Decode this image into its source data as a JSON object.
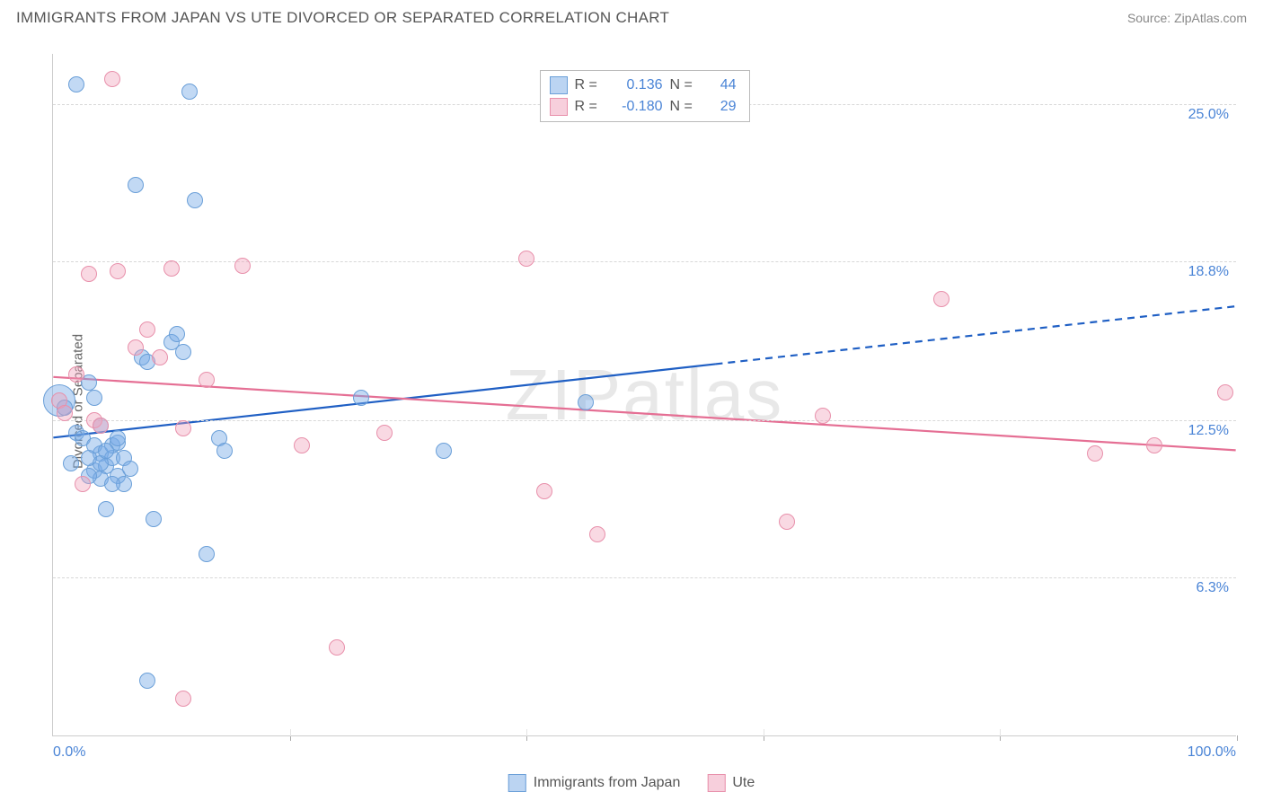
{
  "title": "IMMIGRANTS FROM JAPAN VS UTE DIVORCED OR SEPARATED CORRELATION CHART",
  "source": "Source: ZipAtlas.com",
  "watermark": "ZIPatlas",
  "chart": {
    "type": "scatter",
    "ylabel": "Divorced or Separated",
    "xlim": [
      0,
      100
    ],
    "ylim": [
      0,
      27
    ],
    "background_color": "#ffffff",
    "grid_color": "#d8d8d8",
    "xticks": [
      {
        "pos": 0,
        "label": "0.0%"
      },
      {
        "pos": 100,
        "label": "100.0%"
      }
    ],
    "yticks": [
      {
        "pos": 6.3,
        "label": "6.3%"
      },
      {
        "pos": 12.5,
        "label": "12.5%"
      },
      {
        "pos": 18.8,
        "label": "18.8%"
      },
      {
        "pos": 25.0,
        "label": "25.0%"
      }
    ],
    "vgrid": [
      20,
      40,
      60,
      80,
      100
    ],
    "series": [
      {
        "name": "Immigrants from Japan",
        "color_fill": "rgba(120,170,230,0.45)",
        "color_stroke": "#6a9fd8",
        "marker_radius": 9,
        "r_value": "0.136",
        "n_value": "44",
        "trend": {
          "y0": 11.8,
          "y100": 17.0,
          "solid_until": 56,
          "color": "#1f5fc4",
          "width": 2.2
        },
        "points": [
          [
            0.5,
            13.3,
            18
          ],
          [
            1.0,
            13.0
          ],
          [
            2.0,
            25.8
          ],
          [
            3.5,
            10.5
          ],
          [
            4.0,
            11.2
          ],
          [
            4.5,
            10.7
          ],
          [
            5.0,
            11.0
          ],
          [
            5.5,
            10.3
          ],
          [
            6.0,
            11.0
          ],
          [
            6.0,
            10.0
          ],
          [
            3.0,
            14.0
          ],
          [
            3.5,
            13.4
          ],
          [
            4.0,
            12.3
          ],
          [
            4.5,
            9.0
          ],
          [
            5.0,
            11.5
          ],
          [
            7.0,
            21.8
          ],
          [
            8.5,
            8.6
          ],
          [
            10.0,
            15.6
          ],
          [
            10.5,
            15.9
          ],
          [
            11.0,
            15.2
          ],
          [
            11.5,
            25.5
          ],
          [
            12.0,
            21.2
          ],
          [
            13.0,
            7.2
          ],
          [
            14.0,
            11.8
          ],
          [
            14.5,
            11.3
          ],
          [
            4.0,
            10.2
          ],
          [
            5.5,
            11.6
          ],
          [
            6.5,
            10.6
          ],
          [
            7.5,
            15.0
          ],
          [
            8.0,
            2.2
          ],
          [
            26.0,
            13.4
          ],
          [
            33.0,
            11.3
          ],
          [
            45.0,
            13.2
          ],
          [
            8.0,
            14.8
          ],
          [
            3.0,
            11.0
          ],
          [
            2.0,
            12.0
          ],
          [
            1.5,
            10.8
          ],
          [
            2.5,
            11.8
          ],
          [
            3.0,
            10.3
          ],
          [
            3.5,
            11.5
          ],
          [
            4.0,
            10.8
          ],
          [
            4.5,
            11.3
          ],
          [
            5.0,
            10.0
          ],
          [
            5.5,
            11.8
          ]
        ]
      },
      {
        "name": "Ute",
        "color_fill": "rgba(240,160,185,0.4)",
        "color_stroke": "#e890ab",
        "marker_radius": 9,
        "r_value": "-0.180",
        "n_value": "29",
        "trend": {
          "y0": 14.2,
          "y100": 11.3,
          "solid_until": 100,
          "color": "#e56f94",
          "width": 2.2
        },
        "points": [
          [
            0.5,
            13.3
          ],
          [
            1.0,
            12.8
          ],
          [
            2.0,
            14.3
          ],
          [
            3.0,
            18.3
          ],
          [
            3.5,
            12.5
          ],
          [
            5.0,
            26.0
          ],
          [
            5.5,
            18.4
          ],
          [
            7.0,
            15.4
          ],
          [
            8.0,
            16.1
          ],
          [
            9.0,
            15.0
          ],
          [
            10.0,
            18.5
          ],
          [
            11.0,
            12.2
          ],
          [
            13.0,
            14.1
          ],
          [
            16.0,
            18.6
          ],
          [
            21.0,
            11.5
          ],
          [
            24.0,
            3.5
          ],
          [
            11.0,
            1.5
          ],
          [
            28.0,
            12.0
          ],
          [
            40.0,
            18.9
          ],
          [
            41.5,
            9.7
          ],
          [
            46.0,
            8.0
          ],
          [
            62.0,
            8.5
          ],
          [
            65.0,
            12.7
          ],
          [
            75.0,
            17.3
          ],
          [
            88.0,
            11.2
          ],
          [
            93.0,
            11.5
          ],
          [
            99.0,
            13.6
          ],
          [
            2.5,
            10.0
          ],
          [
            4.0,
            12.3
          ]
        ]
      }
    ],
    "legend_top": [
      {
        "swatch_fill": "rgba(120,170,230,0.5)",
        "swatch_stroke": "#6a9fd8",
        "r": "0.136",
        "n": "44"
      },
      {
        "swatch_fill": "rgba(240,160,185,0.5)",
        "swatch_stroke": "#e890ab",
        "r": "-0.180",
        "n": "29"
      }
    ],
    "legend_bottom": [
      {
        "swatch_fill": "rgba(120,170,230,0.5)",
        "swatch_stroke": "#6a9fd8",
        "label": "Immigrants from Japan"
      },
      {
        "swatch_fill": "rgba(240,160,185,0.5)",
        "swatch_stroke": "#e890ab",
        "label": "Ute"
      }
    ]
  }
}
